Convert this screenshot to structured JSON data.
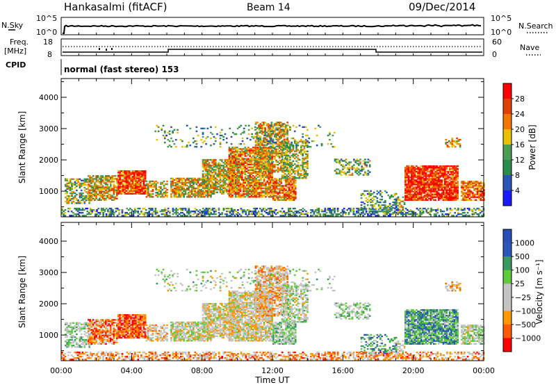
{
  "header": {
    "station": "Hankasalmi (fitACF)",
    "beam": "Beam 14",
    "date": "09/Dec/2014"
  },
  "noise_panel": {
    "left_label": "N.Sky",
    "left_ticks": [
      "10^5",
      "10^0"
    ],
    "right_ticks": [
      "10^5",
      "10^0"
    ],
    "right_label": "N.Search"
  },
  "freq_panel": {
    "left_label_1": "Freq.",
    "left_label_2": "[MHz]",
    "left_ticks": [
      "18",
      "8"
    ],
    "right_ticks": [
      "60",
      "0"
    ],
    "right_label": "Nave"
  },
  "cpid_panel": {
    "label": "CPID",
    "mode_text": "normal (fast stereo) 153"
  },
  "colors": {
    "power_scale": [
      "#1a1aff",
      "#2a55b8",
      "#2c8a4c",
      "#4f9c55",
      "#e8c000",
      "#f07800",
      "#e04000",
      "#ff0000"
    ],
    "velocity_scale": [
      "#ff0000",
      "#ff5a00",
      "#ff9900",
      "#c4c4c4",
      "#c4c4c4",
      "#5ccc3a",
      "#3b9960",
      "#2a56b8",
      "#2a4fb8"
    ]
  },
  "chart_data": [
    {
      "type": "heatmap",
      "title": "",
      "xlabel": "",
      "ylabel": "Slant Range [km]",
      "x_ticks": [
        "00:00",
        "04:00",
        "08:00",
        "12:00",
        "16:00",
        "20:00",
        "00:00"
      ],
      "y_ticks": [
        "1000",
        "2000",
        "3000",
        "4000"
      ],
      "x_range_hours": [
        0,
        24
      ],
      "y_range_km": [
        180,
        4600
      ],
      "colorbar_label": "Power [dB]",
      "colorbar_ticks": [
        "28",
        "24",
        "20",
        "16",
        "12",
        "8",
        "4"
      ],
      "colorbar_range": [
        0,
        32
      ]
    },
    {
      "type": "heatmap",
      "title": "",
      "xlabel": "Time UT",
      "ylabel": "Slant Range [km]",
      "x_ticks": [
        "00:00",
        "04:00",
        "08:00",
        "12:00",
        "16:00",
        "20:00",
        "00:00"
      ],
      "y_ticks": [
        "1000",
        "2000",
        "3000",
        "4000"
      ],
      "x_range_hours": [
        0,
        24
      ],
      "y_range_km": [
        180,
        4600
      ],
      "colorbar_label": "Velocity [m s⁻¹]",
      "colorbar_ticks": [
        "1000",
        "500",
        "100",
        "25",
        "−25",
        "−100",
        "−500",
        "−1000"
      ]
    }
  ]
}
